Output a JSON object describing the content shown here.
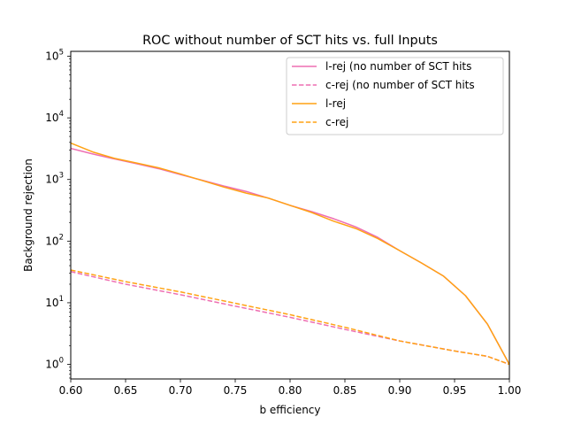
{
  "chart_data": {
    "type": "line",
    "title": "ROC without number of SCT hits vs. full Inputs",
    "xlabel": "b efficiency",
    "ylabel": "Background rejection",
    "xlim": [
      0.6,
      1.0
    ],
    "ylim": [
      0.58,
      120000
    ],
    "yscale": "log",
    "x_ticks": [
      0.6,
      0.65,
      0.7,
      0.75,
      0.8,
      0.85,
      0.9,
      0.95,
      1.0
    ],
    "x_tick_labels": [
      "0.60",
      "0.65",
      "0.70",
      "0.75",
      "0.80",
      "0.85",
      "0.90",
      "0.95",
      "1.00"
    ],
    "y_ticks": [
      1,
      10,
      100,
      1000,
      10000,
      100000
    ],
    "y_tick_base": "10",
    "y_tick_exponents": [
      "0",
      "1",
      "2",
      "3",
      "4",
      "5"
    ],
    "grid": false,
    "legend_position": "top-right",
    "colors": {
      "pink": "#ee6fb2",
      "orange": "#ffa214"
    },
    "series": [
      {
        "name": "l-rej (no number of SCT hits",
        "color": "#ee6fb2",
        "dash": "solid",
        "x": [
          0.6,
          0.62,
          0.64,
          0.66,
          0.68,
          0.7,
          0.72,
          0.74,
          0.76,
          0.78,
          0.8,
          0.82,
          0.84,
          0.86,
          0.88,
          0.9,
          0.92,
          0.94,
          0.96,
          0.98,
          1.0
        ],
        "y": [
          3200,
          2600,
          2150,
          1800,
          1500,
          1200,
          970,
          780,
          640,
          500,
          380,
          300,
          230,
          170,
          115,
          70,
          44,
          27,
          13,
          4.5,
          1.0
        ]
      },
      {
        "name": "c-rej (no number of SCT hits",
        "color": "#ee6fb2",
        "dash": "dashed",
        "x": [
          0.6,
          0.65,
          0.7,
          0.75,
          0.8,
          0.85,
          0.9,
          0.95,
          0.98,
          1.0
        ],
        "y": [
          32,
          20,
          13.5,
          8.8,
          5.8,
          3.7,
          2.4,
          1.65,
          1.35,
          1.0
        ]
      },
      {
        "name": "l-rej",
        "color": "#ffa214",
        "dash": "solid",
        "x": [
          0.6,
          0.62,
          0.64,
          0.66,
          0.68,
          0.7,
          0.72,
          0.74,
          0.76,
          0.78,
          0.8,
          0.82,
          0.84,
          0.86,
          0.88,
          0.9,
          0.92,
          0.94,
          0.96,
          0.98,
          1.0
        ],
        "y": [
          3900,
          2800,
          2200,
          1850,
          1550,
          1230,
          960,
          750,
          600,
          500,
          380,
          290,
          210,
          160,
          110,
          70,
          44,
          27,
          13,
          4.5,
          1.0
        ]
      },
      {
        "name": "c-rej",
        "color": "#ffa214",
        "dash": "dashed",
        "x": [
          0.6,
          0.65,
          0.7,
          0.75,
          0.8,
          0.85,
          0.9,
          0.95,
          0.98,
          1.0
        ],
        "y": [
          34,
          22,
          15,
          9.8,
          6.4,
          4.0,
          2.4,
          1.65,
          1.35,
          1.0
        ]
      }
    ]
  }
}
